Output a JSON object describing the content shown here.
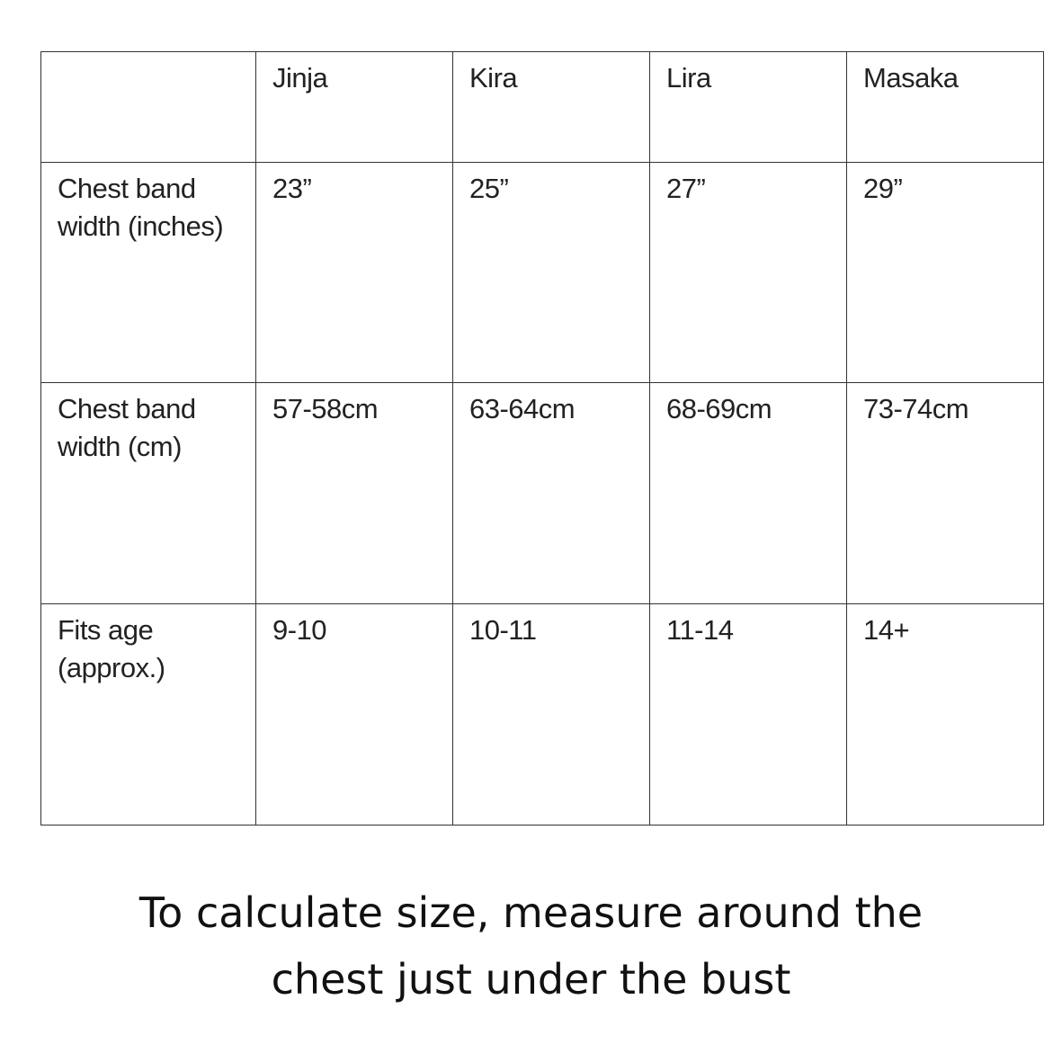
{
  "table": {
    "headers": [
      "",
      "Jinja",
      "Kira",
      "Lira",
      "Masaka"
    ],
    "rows": [
      {
        "label": "Chest band width (inches)",
        "values": [
          "23”",
          "25”",
          "27”",
          "29”"
        ]
      },
      {
        "label": "Chest band width (cm)",
        "values": [
          "57-58cm",
          "63-64cm",
          "68-69cm",
          "73-74cm"
        ]
      },
      {
        "label": "Fits age (approx.)",
        "values": [
          "9-10",
          "10-11",
          "11-14",
          "14+"
        ]
      }
    ]
  },
  "caption": {
    "line1": "To calculate size, measure around the",
    "line2": "chest just under the bust"
  }
}
